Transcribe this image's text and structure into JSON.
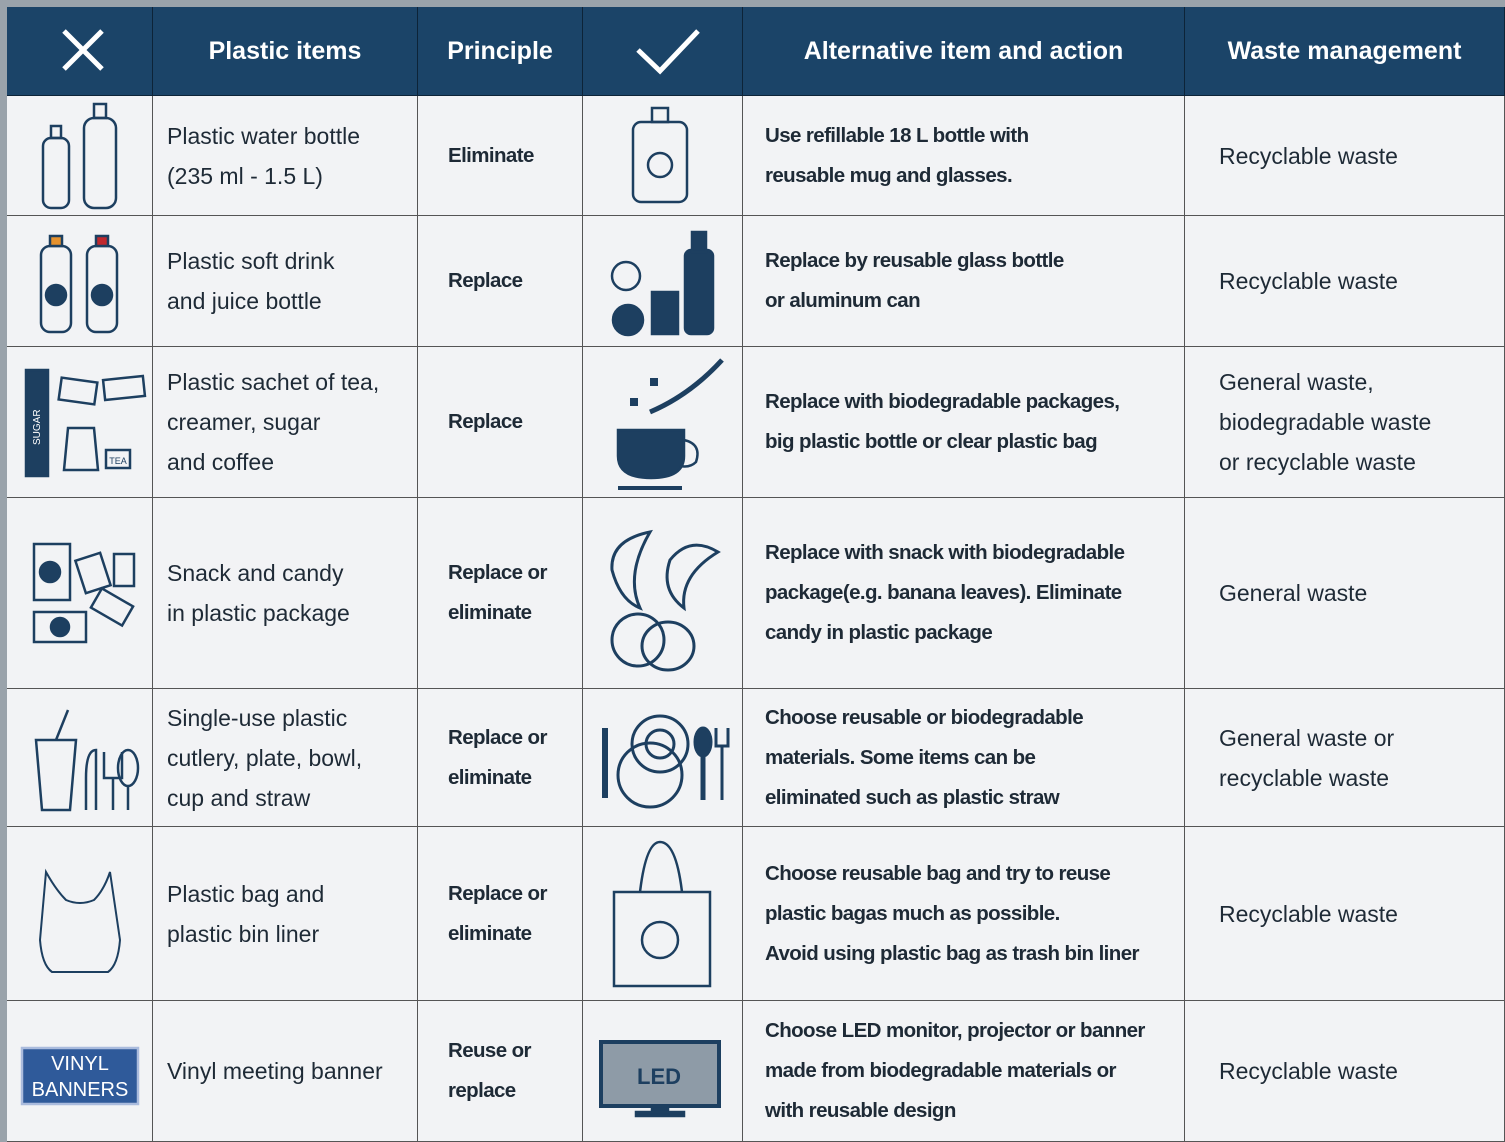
{
  "header": {
    "columns": [
      "Plastic items",
      "Principle",
      "Alternative item and action",
      "Waste management"
    ]
  },
  "icon_labels": {
    "sugar": "SUGAR",
    "tea": "TEA",
    "banner": [
      "VINYL",
      "BANNERS"
    ],
    "led": "LED"
  },
  "rows": [
    {
      "item": [
        "Plastic water bottle",
        "(235 ml - 1.5 L)"
      ],
      "principle": [
        "Eliminate"
      ],
      "alternative": [
        "Use refillable 18 L bottle with",
        "reusable mug and glasses."
      ],
      "waste": [
        "Recyclable waste"
      ]
    },
    {
      "item": [
        "Plastic soft drink",
        "and juice bottle"
      ],
      "principle": [
        "Replace"
      ],
      "alternative": [
        "Replace by reusable glass bottle",
        "or aluminum can"
      ],
      "waste": [
        "Recyclable waste"
      ]
    },
    {
      "item": [
        "Plastic sachet of tea,",
        "creamer, sugar",
        "and coffee"
      ],
      "principle": [
        "Replace"
      ],
      "alternative": [
        "Replace with biodegradable packages,",
        "big plastic bottle or clear plastic bag"
      ],
      "waste": [
        "General waste,",
        "biodegradable waste",
        "or recyclable waste"
      ]
    },
    {
      "item": [
        "Snack and candy",
        "in plastic package"
      ],
      "principle": [
        "Replace or",
        "eliminate"
      ],
      "alternative": [
        "Replace with snack with biodegradable",
        "package(e.g. banana leaves). Eliminate",
        "candy in plastic package"
      ],
      "waste": [
        "General waste"
      ]
    },
    {
      "item": [
        "Single-use plastic",
        "cutlery, plate, bowl,",
        "cup and straw"
      ],
      "principle": [
        "Replace or",
        "eliminate"
      ],
      "alternative": [
        "Choose reusable or biodegradable",
        "materials. Some items can be",
        "eliminated such as plastic straw"
      ],
      "waste": [
        "General waste or",
        "recyclable waste"
      ]
    },
    {
      "item": [
        "Plastic bag and",
        "plastic bin liner"
      ],
      "principle": [
        "Replace or",
        "eliminate"
      ],
      "alternative": [
        "Choose reusable bag and try to reuse",
        "plastic bagas much as possible.",
        "Avoid using plastic bag as trash bin liner"
      ],
      "waste": [
        "Recyclable waste"
      ]
    },
    {
      "item": [
        "Vinyl meeting banner"
      ],
      "principle": [
        "Reuse or",
        "replace"
      ],
      "alternative": [
        "Choose LED monitor, projector or banner",
        "made from biodegradable materials or",
        "with reusable design"
      ],
      "waste": [
        "Recyclable waste"
      ]
    }
  ]
}
